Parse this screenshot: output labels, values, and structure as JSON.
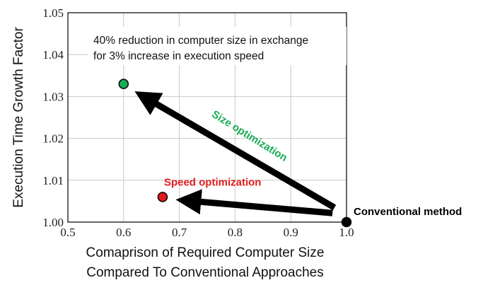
{
  "chart_data": {
    "type": "scatter",
    "title": "",
    "xlabel_lines": [
      "Comaprison of Required Computer Size",
      "Compared To Conventional Approaches"
    ],
    "ylabel": "Execution Time Growth Factor",
    "xlim": [
      0.5,
      1.0
    ],
    "ylim": [
      1.0,
      1.05
    ],
    "x_ticks": [
      "0.5",
      "0.6",
      "0.7",
      "0.8",
      "0.9",
      "1.0"
    ],
    "y_ticks": [
      "1.00",
      "1.01",
      "1.02",
      "1.03",
      "1.04",
      "1.05"
    ],
    "grid": true,
    "points": [
      {
        "label": "Conventional method",
        "x": 1.0,
        "y": 1.0,
        "color": "#000000",
        "label_color": "#000000"
      },
      {
        "label": "Size optimization",
        "x": 0.6,
        "y": 1.033,
        "color": "#1aaa55",
        "label_color": "#1aaa55"
      },
      {
        "label": "Speed optimization",
        "x": 0.67,
        "y": 1.006,
        "color": "#e01b1b",
        "label_color": "#e01b1b"
      }
    ],
    "annotation_lines": [
      "40% reduction in computer size in exchange",
      "for 3% increase in execution speed"
    ]
  }
}
